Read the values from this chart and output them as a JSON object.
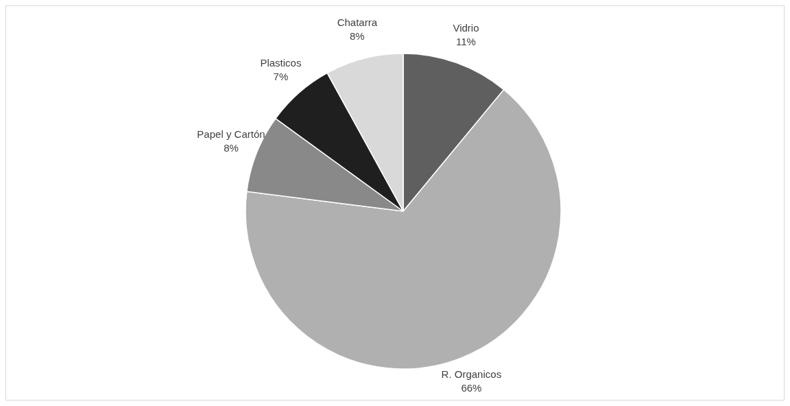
{
  "chart_data": {
    "type": "pie",
    "categories": [
      "Vidrio",
      "R. Organicos",
      "Papel y Cartón",
      "Plasticos",
      "Chatarra"
    ],
    "values": [
      11,
      66,
      8,
      7,
      8
    ],
    "colors": [
      "#5f5f5f",
      "#b0b0b0",
      "#898989",
      "#1f1f1f",
      "#d9d9d9"
    ],
    "value_labels": [
      "11%",
      "66%",
      "8%",
      "7%",
      "8%"
    ]
  }
}
